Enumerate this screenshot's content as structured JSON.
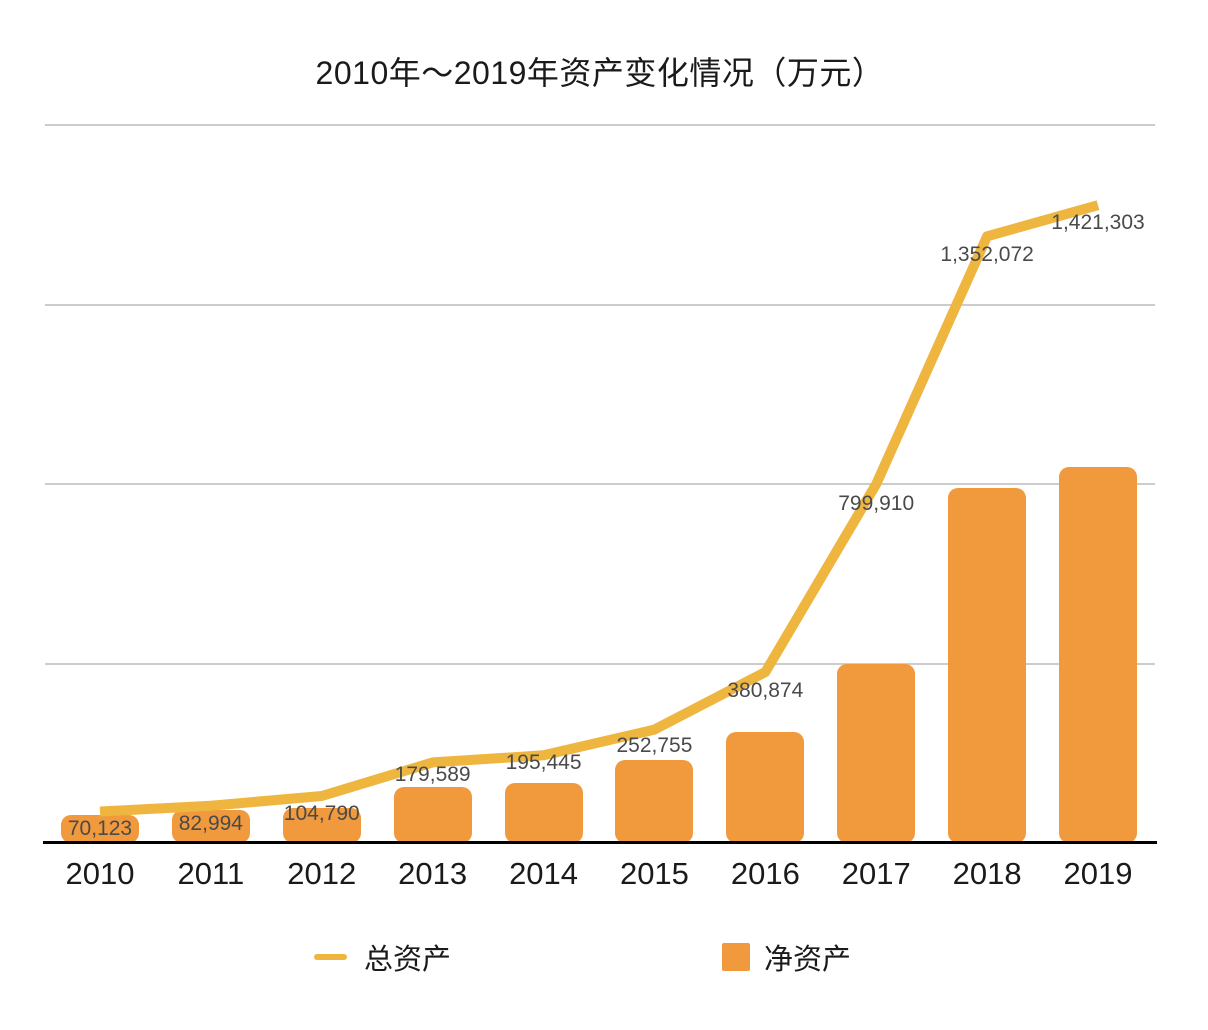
{
  "chart_data": {
    "type": "combo-line-bar",
    "title": "2010年～2019年资产变化情况（万元）",
    "categories": [
      "2010",
      "2011",
      "2012",
      "2013",
      "2014",
      "2015",
      "2016",
      "2017",
      "2018",
      "2019"
    ],
    "series": [
      {
        "name": "总资产",
        "type": "line",
        "color": "#EEB53F",
        "values": [
          70123,
          82994,
          104790,
          179589,
          195445,
          252755,
          380874,
          799910,
          1352072,
          1421303
        ],
        "labels": [
          "70,123",
          "82,994",
          "104,790",
          "179,589",
          "195,445",
          "252,755",
          "380,874",
          "799,910",
          "1,352,072",
          "1,421,303"
        ]
      },
      {
        "name": "净资产",
        "type": "bar",
        "color": "#F0993D",
        "values": [
          62000,
          73000,
          79000,
          125000,
          134000,
          185000,
          248000,
          400000,
          791000,
          838000
        ]
      }
    ],
    "ylim": [
      0,
      1600000
    ],
    "gridline_step": 400000,
    "gridline_color": "#CCCCCC",
    "axis_color": "#000000",
    "value_label_color": "#4A4A4A",
    "text_color": "#1A1A1A",
    "background": "#FFFFFF",
    "grid": "horizontal-only",
    "y_axis_tick_labels": "hidden",
    "legend_position": "bottom"
  }
}
